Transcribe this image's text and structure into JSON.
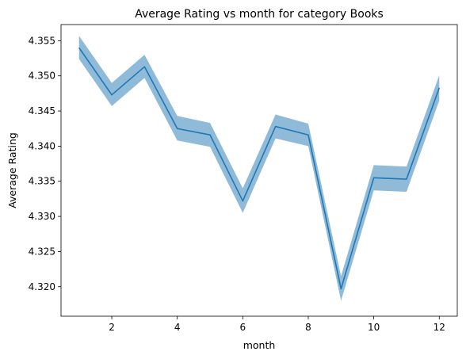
{
  "chart_data": {
    "type": "line",
    "title": "Average Rating vs month for category Books",
    "xlabel": "month",
    "ylabel": "Average Rating",
    "grid": false,
    "legend": "none",
    "xlim": [
      0.45,
      12.55
    ],
    "ylim": [
      4.3158,
      4.3573
    ],
    "xticks": [
      2,
      4,
      6,
      8,
      10,
      12
    ],
    "yticks": [
      4.32,
      4.325,
      4.33,
      4.335,
      4.34,
      4.345,
      4.35,
      4.355
    ],
    "ytick_labels": [
      "4.320",
      "4.325",
      "4.330",
      "4.335",
      "4.340",
      "4.345",
      "4.350",
      "4.355"
    ],
    "series": [
      {
        "color": "#1f77b4",
        "band_color": "#1f77b4",
        "x": [
          1,
          2,
          3,
          4,
          5,
          6,
          7,
          8,
          9,
          10,
          11,
          12
        ],
        "values": [
          4.354,
          4.3473,
          4.3513,
          4.3425,
          4.3416,
          4.3322,
          4.3428,
          4.3416,
          4.3197,
          4.3355,
          4.3353,
          4.3483
        ],
        "lower": [
          4.3524,
          4.3457,
          4.3497,
          4.3408,
          4.3399,
          4.3305,
          4.3411,
          4.34,
          4.318,
          4.3337,
          4.3335,
          4.3465
        ],
        "upper": [
          4.3557,
          4.349,
          4.353,
          4.3443,
          4.3433,
          4.334,
          4.3445,
          4.3432,
          4.3215,
          4.3373,
          4.3371,
          4.3501
        ]
      }
    ]
  }
}
